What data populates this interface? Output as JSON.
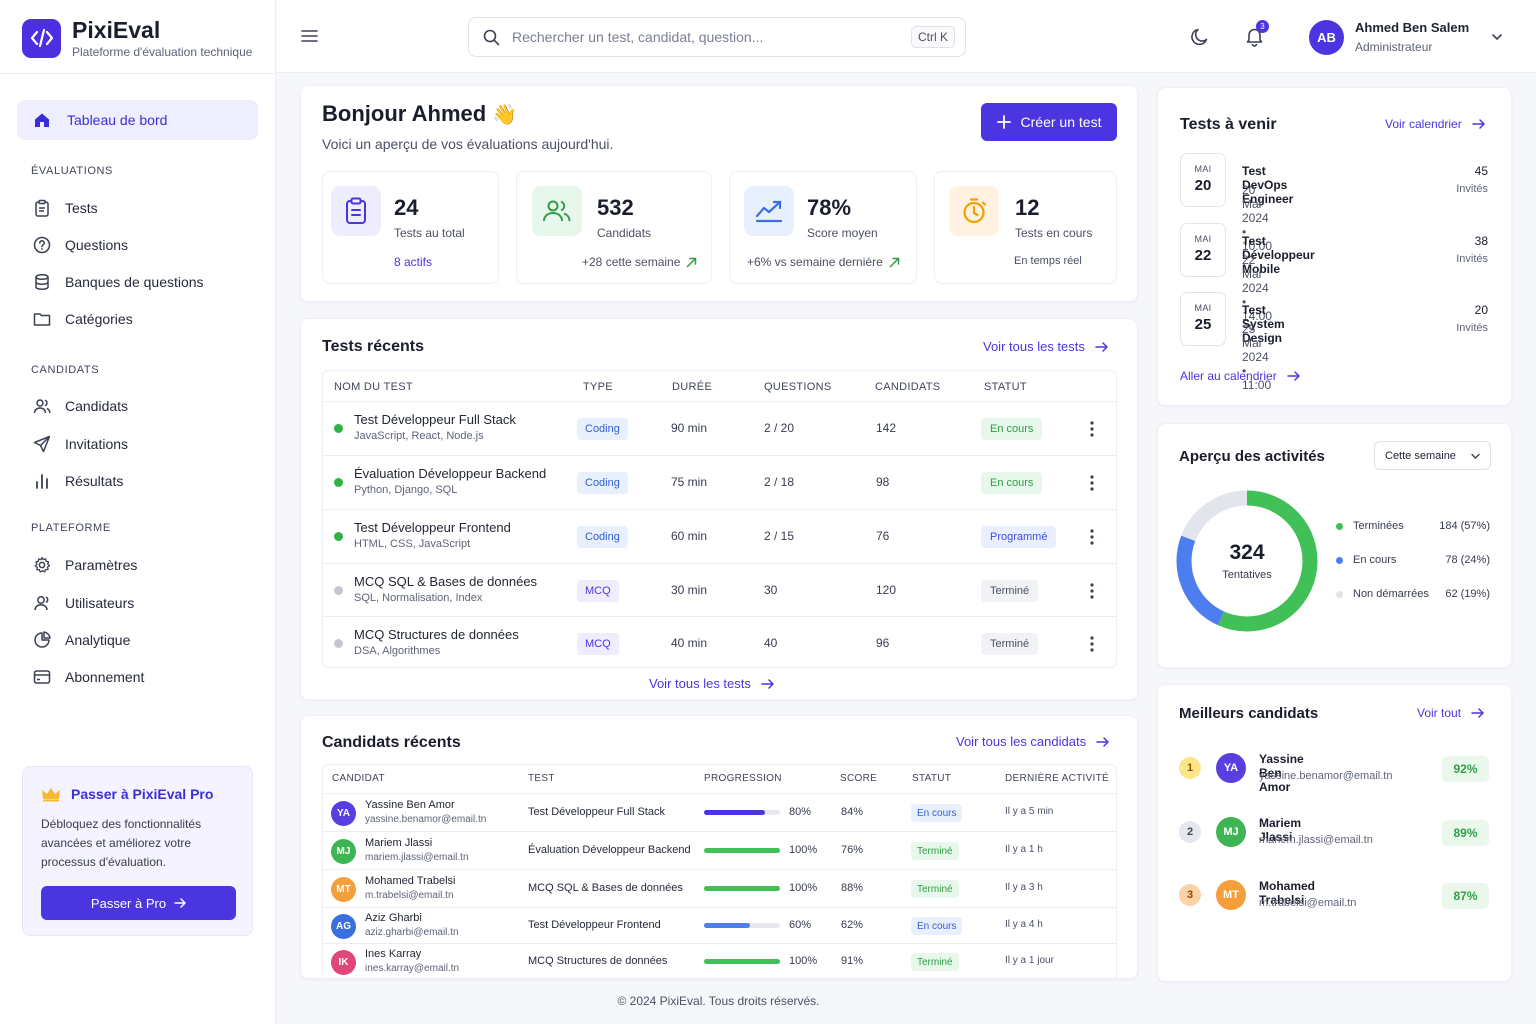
{
  "app": {
    "name": "PixiEval",
    "tagline": "Plateforme d'évaluation technique"
  },
  "sidebar": {
    "active": "Tableau de bord",
    "sections": [
      {
        "title": "ÉVALUATIONS",
        "items": [
          "Tests",
          "Questions",
          "Banques de questions",
          "Catégories"
        ]
      },
      {
        "title": "CANDIDATS",
        "items": [
          "Candidats",
          "Invitations",
          "Résultats"
        ]
      },
      {
        "title": "PLATEFORME",
        "items": [
          "Paramètres",
          "Utilisateurs",
          "Analytique",
          "Abonnement"
        ]
      }
    ],
    "promo": {
      "title": "Passer à PixiEval Pro",
      "desc": "Débloquez des fonctionnalités avancées et améliorez votre processus d'évaluation.",
      "button": "Passer à Pro"
    }
  },
  "topbar": {
    "search_placeholder": "Rechercher un test, candidat, question...",
    "shortcut": "Ctrl K",
    "notif_count": "3",
    "user": {
      "initials": "AB",
      "name": "Ahmed Ben Salem",
      "role": "Administrateur"
    }
  },
  "greeting": {
    "title": "Bonjour Ahmed",
    "emoji": "👋",
    "subtitle": "Voici un aperçu de vos évaluations aujourd'hui.",
    "create_button": "Créer un test"
  },
  "stats": [
    {
      "value": "24",
      "label": "Tests au total",
      "foot": "8 actifs",
      "color": "#4a35e0"
    },
    {
      "value": "532",
      "label": "Candidats",
      "foot": "+28 cette semaine",
      "color": "#2f9e44"
    },
    {
      "value": "78%",
      "label": "Score moyen",
      "foot": "+6% vs semaine dernière",
      "color": "#3b6fe0"
    },
    {
      "value": "12",
      "label": "Tests en cours",
      "foot": "En temps réel",
      "color": "#f59f00"
    }
  ],
  "recent_tests": {
    "title": "Tests récents",
    "link": "Voir tous les tests",
    "footer_link": "Voir tous les tests",
    "columns": [
      "NOM DU TEST",
      "TYPE",
      "DURÉE",
      "QUESTIONS",
      "CANDIDATS",
      "STATUT"
    ],
    "rows": [
      {
        "name": "Test Développeur Full Stack",
        "sub": "JavaScript, React, Node.js",
        "type": "Coding",
        "duration": "90 min",
        "questions": "2 / 20",
        "candidates": "142",
        "status": "En cours",
        "dot": "#2fb344"
      },
      {
        "name": "Évaluation Développeur Backend",
        "sub": "Python, Django, SQL",
        "type": "Coding",
        "duration": "75 min",
        "questions": "2 / 18",
        "candidates": "98",
        "status": "En cours",
        "dot": "#2fb344"
      },
      {
        "name": "Test Développeur Frontend",
        "sub": "HTML, CSS, JavaScript",
        "type": "Coding",
        "duration": "60 min",
        "questions": "2 / 15",
        "candidates": "76",
        "status": "Programmé",
        "dot": "#2fb344"
      },
      {
        "name": "MCQ SQL & Bases de données",
        "sub": "SQL, Normalisation, Index",
        "type": "MCQ",
        "duration": "30 min",
        "questions": "30",
        "candidates": "120",
        "status": "Terminé",
        "dot": "#c3c6d1"
      },
      {
        "name": "MCQ Structures de données",
        "sub": "DSA, Algorithmes",
        "type": "MCQ",
        "duration": "40 min",
        "questions": "40",
        "candidates": "96",
        "status": "Terminé",
        "dot": "#c3c6d1"
      }
    ]
  },
  "recent_candidates": {
    "title": "Candidats récents",
    "link": "Voir tous les candidats",
    "columns": [
      "CANDIDAT",
      "TEST",
      "PROGRESSION",
      "SCORE",
      "STATUT",
      "DERNIÈRE ACTIVITÉ"
    ],
    "rows": [
      {
        "initials": "YA",
        "color": "#5a3fe0",
        "name": "Yassine Ben Amor",
        "email": "yassine.benamor@email.tn",
        "test": "Test Développeur Full Stack",
        "progress": 80,
        "progress_label": "80%",
        "score": "84%",
        "status": "En cours",
        "last": "Il y a 5 min"
      },
      {
        "initials": "MJ",
        "color": "#3db552",
        "name": "Mariem Jlassi",
        "email": "mariem.jlassi@email.tn",
        "test": "Évaluation Développeur Backend",
        "progress": 100,
        "progress_label": "100%",
        "score": "76%",
        "status": "Terminé",
        "last": "Il y a 1 h"
      },
      {
        "initials": "MT",
        "color": "#f59f3c",
        "name": "Mohamed Trabelsi",
        "email": "m.trabelsi@email.tn",
        "test": "MCQ SQL & Bases de données",
        "progress": 100,
        "progress_label": "100%",
        "score": "88%",
        "status": "Terminé",
        "last": "Il y a 3 h"
      },
      {
        "initials": "AG",
        "color": "#3b6fe0",
        "name": "Aziz Gharbi",
        "email": "aziz.gharbi@email.tn",
        "test": "Test Développeur Frontend",
        "progress": 60,
        "progress_label": "60%",
        "score": "62%",
        "status": "En cours",
        "last": "Il y a 4 h"
      },
      {
        "initials": "IK",
        "color": "#e0457b",
        "name": "Ines Karray",
        "email": "ines.karray@email.tn",
        "test": "MCQ Structures de données",
        "progress": 100,
        "progress_label": "100%",
        "score": "91%",
        "status": "Terminé",
        "last": "Il y a 1 jour"
      }
    ]
  },
  "upcoming": {
    "title": "Tests à venir",
    "link": "Voir calendrier",
    "footer_link": "Aller au calendrier",
    "items": [
      {
        "month": "MAI",
        "day": "20",
        "title": "Test DevOps Engineer",
        "when": "20 Mai 2024 • 10:00",
        "count": "45",
        "unit": "Invités"
      },
      {
        "month": "MAI",
        "day": "22",
        "title": "Test Développeur Mobile",
        "when": "22 Mai 2024 • 14:00",
        "count": "38",
        "unit": "Invités"
      },
      {
        "month": "MAI",
        "day": "25",
        "title": "Test System Design",
        "when": "25 Mai 2024 • 11:00",
        "count": "20",
        "unit": "Invités"
      }
    ]
  },
  "activity": {
    "title": "Aperçu des activités",
    "period": "Cette semaine",
    "total": "324",
    "total_label": "Tentatives",
    "legend": [
      {
        "label": "Terminées",
        "value": "184 (57%)",
        "count": 184,
        "color": "#40c057"
      },
      {
        "label": "En cours",
        "value": "78 (24%)",
        "count": 78,
        "color": "#4c7ef0"
      },
      {
        "label": "Non démarrées",
        "value": "62 (19%)",
        "count": 62,
        "color": "#e3e5ec"
      }
    ]
  },
  "chart_data": {
    "type": "pie",
    "title": "Aperçu des activités",
    "categories": [
      "Terminées",
      "En cours",
      "Non démarrées"
    ],
    "values": [
      184,
      78,
      62
    ],
    "center_value": "324",
    "center_label": "Tentatives"
  },
  "best": {
    "title": "Meilleurs candidats",
    "link": "Voir tout",
    "items": [
      {
        "rank": "1",
        "initials": "YA",
        "color": "#5a3fe0",
        "name": "Yassine Ben Amor",
        "email": "yassine.benamor@email.tn",
        "score": "92%",
        "rank_bg": "#fde68a",
        "rank_fg": "#8a5a00"
      },
      {
        "rank": "2",
        "initials": "MJ",
        "color": "#3db552",
        "name": "Mariem Jlassi",
        "email": "mariem.jlassi@email.tn",
        "score": "89%",
        "rank_bg": "#e5e7ee",
        "rank_fg": "#40455a"
      },
      {
        "rank": "3",
        "initials": "MT",
        "color": "#f59f3c",
        "name": "Mohamed Trabelsi",
        "email": "m.trabelsi@email.tn",
        "score": "87%",
        "rank_bg": "#fbd3a6",
        "rank_fg": "#8a4a00"
      }
    ]
  },
  "footer": "© 2024 PixiEval. Tous droits réservés."
}
